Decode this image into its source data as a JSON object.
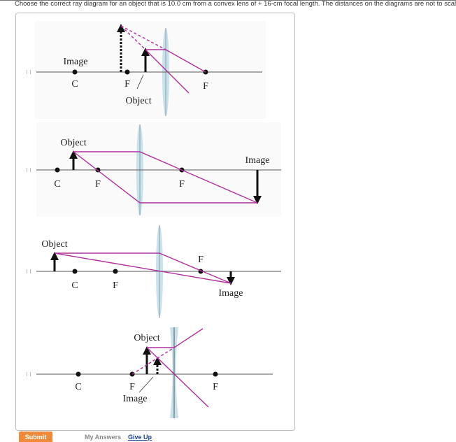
{
  "question": "Choose the correct ray diagram for an object that is 10.0 cm from a convex lens of + 16-cm focal length. The distances on the diagrams are not to scale.",
  "colors": {
    "ray": "#b0309e",
    "lens": "#bcdbe6",
    "submit": "#ef8a3a",
    "link": "#1a3f9a"
  },
  "options": [
    {
      "labels": {
        "image": "Image",
        "c": "C",
        "f1": "F",
        "f2": "F",
        "object": "Object"
      }
    },
    {
      "labels": {
        "object": "Object",
        "c": "C",
        "f1": "F",
        "f2": "F",
        "image": "Image"
      }
    },
    {
      "labels": {
        "object": "Object",
        "c": "C",
        "f1": "F",
        "f2": "F",
        "image": "Image"
      }
    },
    {
      "labels": {
        "object": "Object",
        "c": "C",
        "f1": "F",
        "f2": "F",
        "image": "Image"
      }
    }
  ],
  "footer": {
    "submit": "Submit",
    "my_answers": "My Answers",
    "give_up": "Give Up"
  }
}
